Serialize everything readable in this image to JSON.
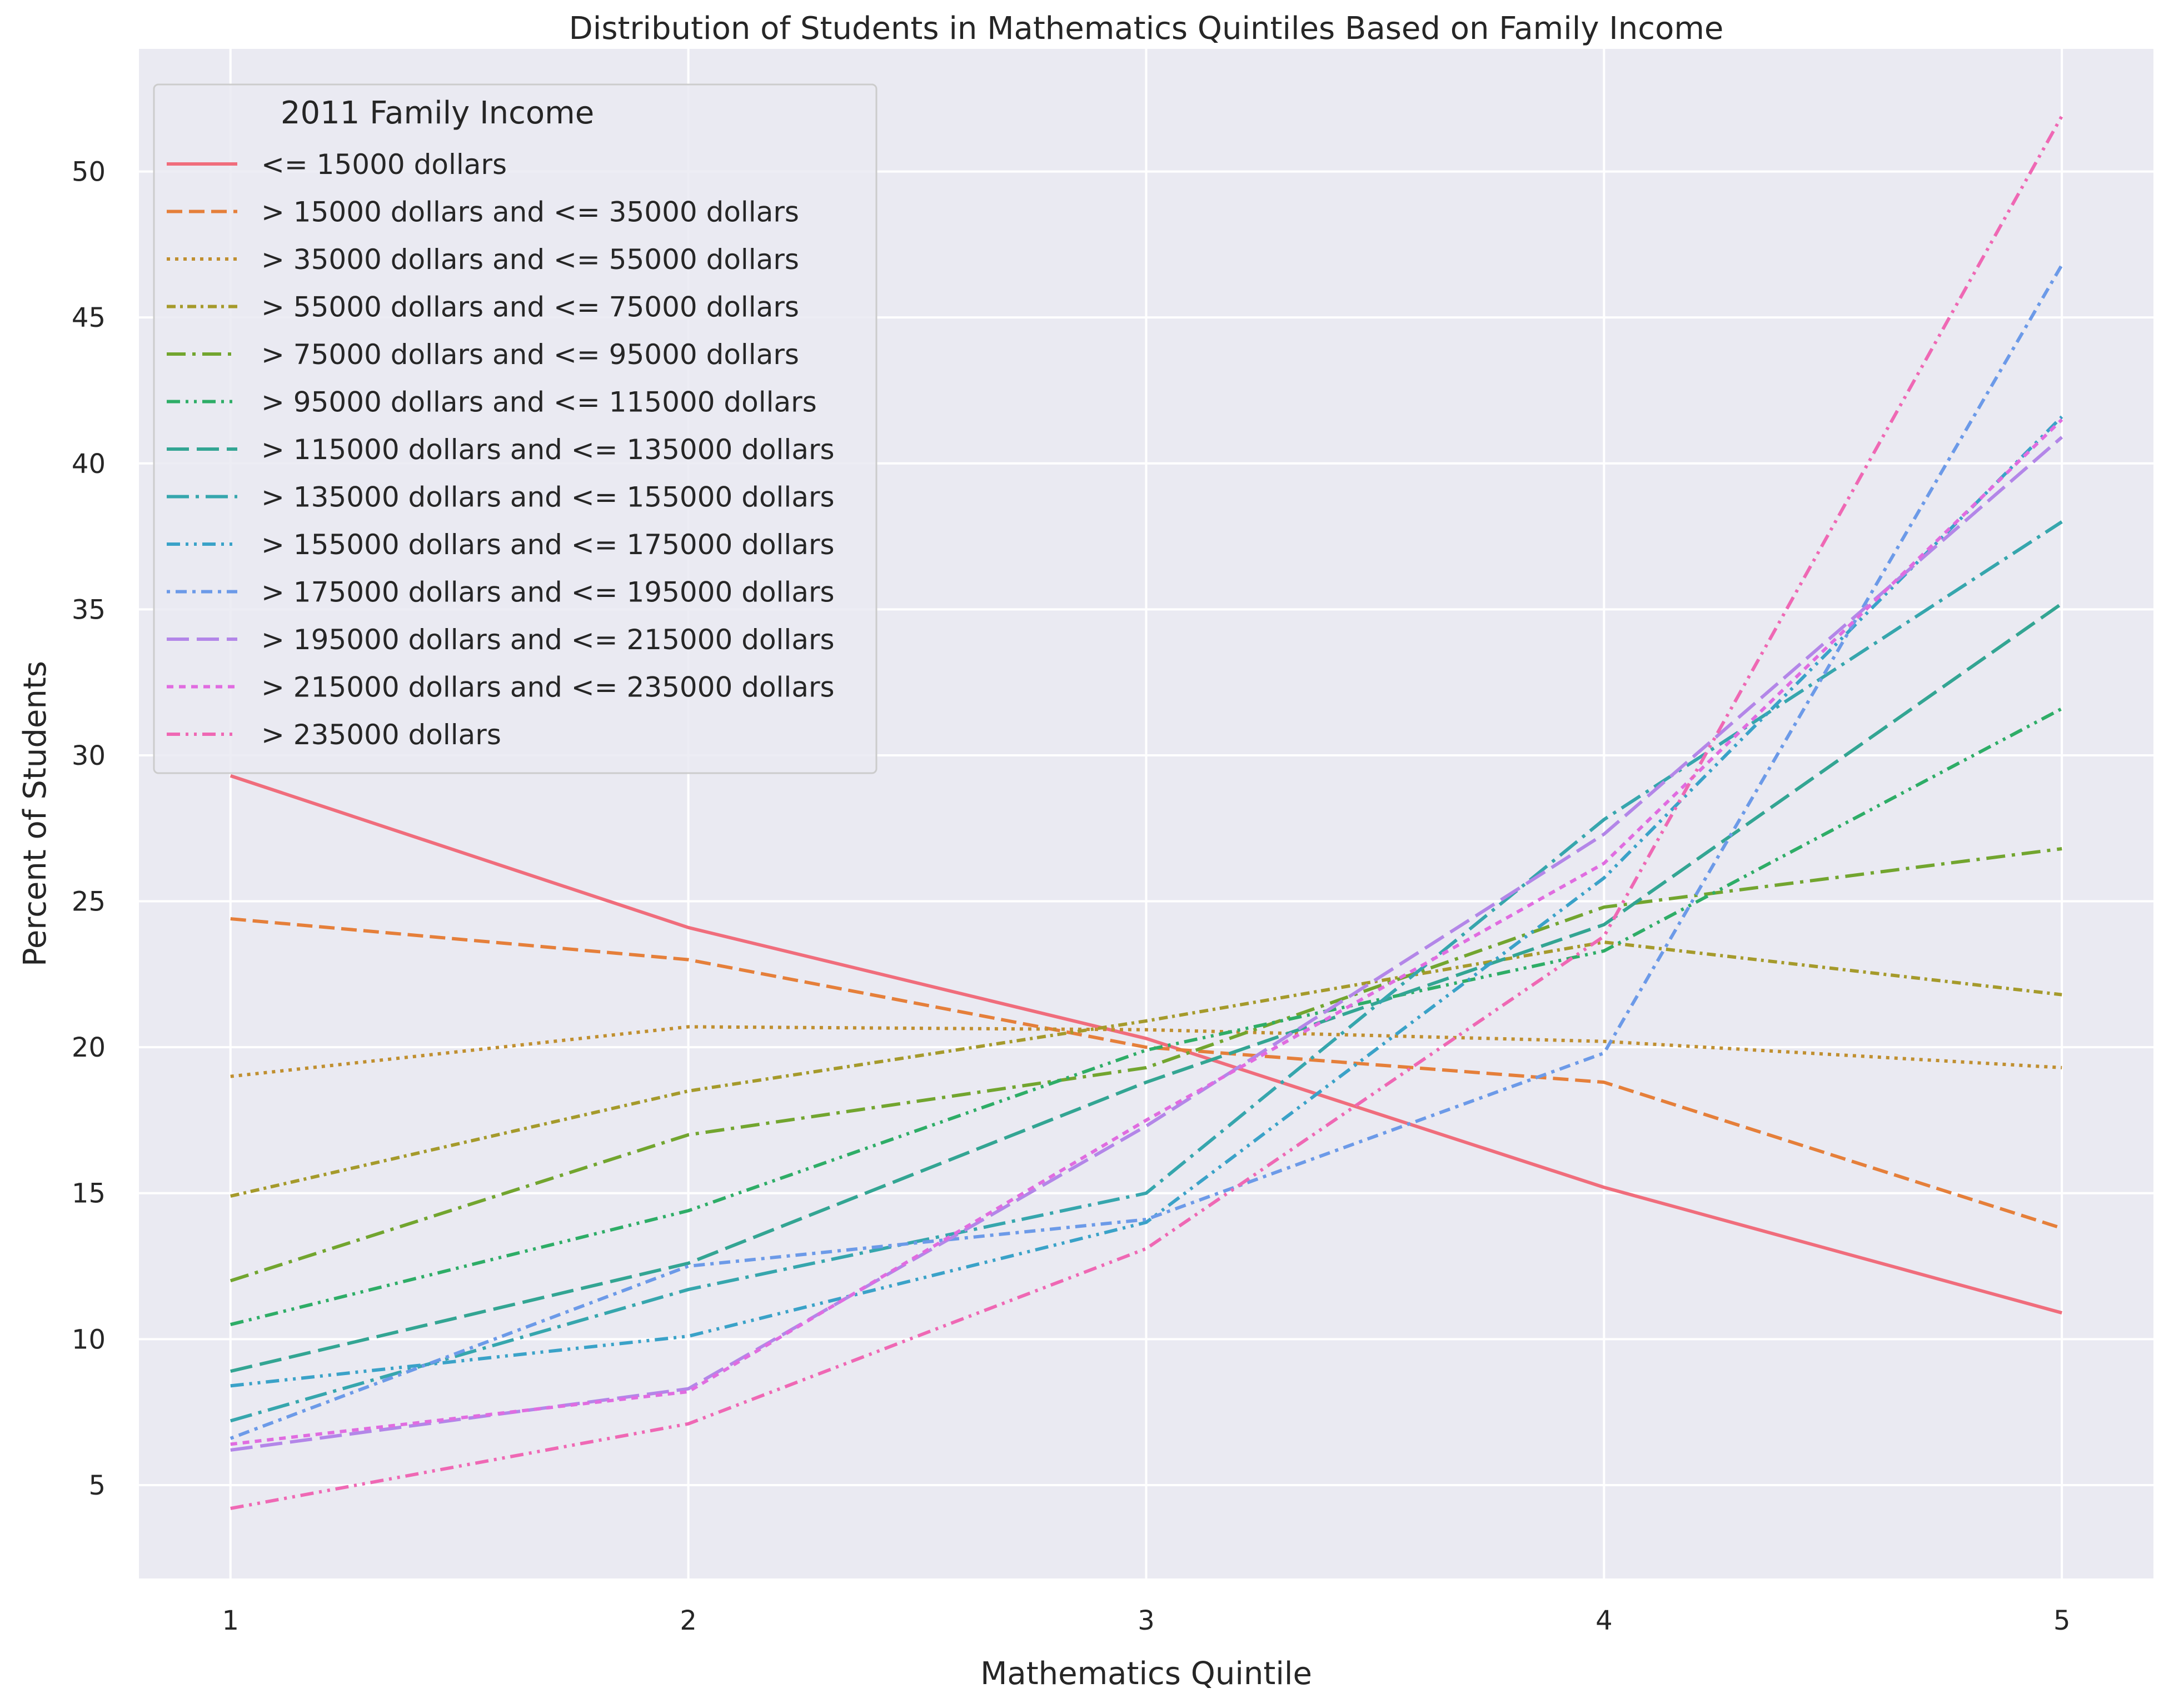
{
  "chart_data": {
    "type": "line",
    "title": "Distribution of Students in Mathematics Quintiles Based on Family Income",
    "xlabel": "Mathematics Quintile",
    "ylabel": "Percent of Students",
    "x": [
      1,
      2,
      3,
      4,
      5
    ],
    "xlim": [
      0.8,
      5.2
    ],
    "ylim": [
      1.8,
      54.2
    ],
    "yticks": [
      5,
      10,
      15,
      20,
      25,
      30,
      35,
      40,
      45,
      50
    ],
    "grid": true,
    "legend": {
      "title": "2011 Family Income",
      "position": "upper-left"
    },
    "series": [
      {
        "name": "<= 15000 dollars",
        "color": "#f06d7c",
        "dash": "solid",
        "values": [
          29.3,
          24.1,
          20.3,
          15.2,
          10.9
        ]
      },
      {
        "name": "> 15000 dollars and <= 35000 dollars",
        "color": "#e57f3a",
        "dash": "dashed",
        "values": [
          24.4,
          23.0,
          20.0,
          18.8,
          13.8
        ]
      },
      {
        "name": "> 35000 dollars and <= 55000 dollars",
        "color": "#c08f2f",
        "dash": "dotted",
        "values": [
          19.0,
          20.7,
          20.6,
          20.2,
          19.3
        ]
      },
      {
        "name": "> 55000 dollars and <= 75000 dollars",
        "color": "#a59a2b",
        "dash": "dashdot-short",
        "values": [
          14.9,
          18.5,
          20.9,
          23.6,
          21.8
        ]
      },
      {
        "name": "> 75000 dollars and <= 95000 dollars",
        "color": "#72a52f",
        "dash": "dashdot",
        "values": [
          12.0,
          17.0,
          19.3,
          24.8,
          26.8
        ]
      },
      {
        "name": "> 95000 dollars and <= 115000 dollars",
        "color": "#2ead67",
        "dash": "dashdotdot",
        "values": [
          10.5,
          14.4,
          19.9,
          23.3,
          31.6
        ]
      },
      {
        "name": "> 115000 dollars and <= 135000 dollars",
        "color": "#33a593",
        "dash": "longdash",
        "values": [
          8.9,
          12.6,
          18.8,
          24.2,
          35.2
        ]
      },
      {
        "name": "> 135000 dollars and <= 155000 dollars",
        "color": "#36a6ad",
        "dash": "dashdot-long",
        "values": [
          7.2,
          11.7,
          15.0,
          27.8,
          38.0
        ]
      },
      {
        "name": "> 155000 dollars and <= 175000 dollars",
        "color": "#3aa2c8",
        "dash": "dashdotdot",
        "values": [
          8.4,
          10.1,
          14.0,
          25.8,
          41.6
        ]
      },
      {
        "name": "> 175000 dollars and <= 195000 dollars",
        "color": "#6c9ae8",
        "dash": "dotdash",
        "values": [
          6.6,
          12.5,
          14.1,
          19.8,
          46.8
        ]
      },
      {
        "name": "> 195000 dollars and <= 215000 dollars",
        "color": "#b386e8",
        "dash": "longdash",
        "values": [
          6.2,
          8.3,
          17.3,
          27.3,
          40.9
        ]
      },
      {
        "name": "> 215000 dollars and <= 235000 dollars",
        "color": "#e06ce0",
        "dash": "shortdot",
        "values": [
          6.4,
          8.2,
          17.5,
          26.3,
          41.5
        ]
      },
      {
        "name": "> 235000 dollars",
        "color": "#ef68b4",
        "dash": "dashdotdot",
        "values": [
          4.2,
          7.1,
          13.1,
          23.8,
          51.9
        ]
      }
    ]
  }
}
